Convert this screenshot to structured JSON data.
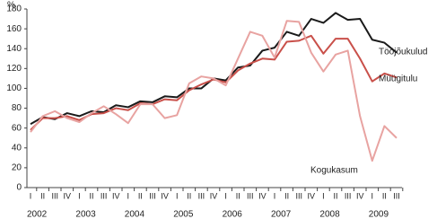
{
  "chart_data": {
    "type": "line",
    "y_unit": "%",
    "categories": [
      "I",
      "II",
      "III",
      "IV",
      "I",
      "II",
      "III",
      "IV",
      "I",
      "II",
      "III",
      "IV",
      "I",
      "II",
      "III",
      "IV",
      "I",
      "II",
      "III",
      "IV",
      "I",
      "II",
      "III",
      "IV",
      "I",
      "II",
      "III",
      "IV",
      "I",
      "II",
      "III"
    ],
    "years": [
      "2002",
      "2003",
      "2004",
      "2005",
      "2006",
      "2007",
      "2008",
      "2009"
    ],
    "series": [
      {
        "name": "Tööjõukulud",
        "color": "#1a1a1a",
        "values": [
          64,
          71,
          69,
          75,
          72,
          77,
          76,
          83,
          81,
          87,
          86,
          92,
          91,
          100,
          100,
          110,
          108,
          121,
          123,
          138,
          141,
          157,
          153,
          170,
          166,
          176,
          169,
          170,
          149,
          146,
          136
        ]
      },
      {
        "name": "Müügitulu",
        "color": "#c9504a",
        "values": [
          58,
          70,
          70,
          72,
          68,
          74,
          75,
          80,
          78,
          85,
          84,
          89,
          88,
          98,
          104,
          109,
          106,
          118,
          125,
          130,
          129,
          147,
          148,
          153,
          135,
          150,
          150,
          130,
          107,
          115,
          111
        ]
      },
      {
        "name": "Kogukasum",
        "color": "#e8a3a1",
        "values": [
          56,
          72,
          77,
          70,
          66,
          75,
          82,
          74,
          65,
          84,
          84,
          70,
          73,
          105,
          112,
          110,
          103,
          130,
          157,
          153,
          131,
          168,
          167,
          136,
          117,
          134,
          138,
          72,
          27,
          62,
          50
        ]
      }
    ],
    "ylim": [
      0,
      180
    ],
    "yticks": [
      0,
      20,
      40,
      60,
      80,
      100,
      120,
      140,
      160,
      180
    ]
  }
}
